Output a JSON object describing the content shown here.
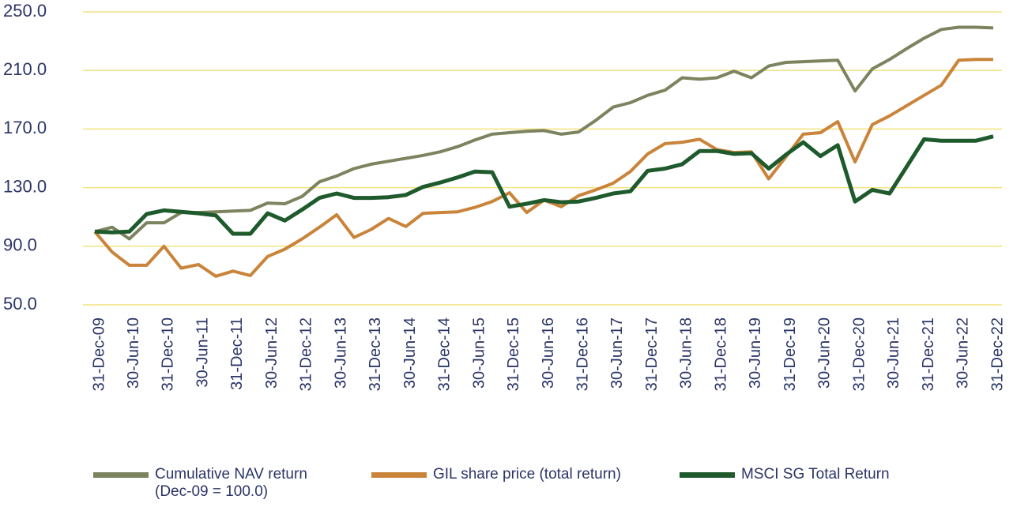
{
  "chart_data": {
    "type": "line",
    "categories": [
      "31-Dec-09",
      null,
      "30-Jun-10",
      null,
      "31-Dec-10",
      null,
      "30-Jun-11",
      null,
      "31-Dec-11",
      null,
      "30-Jun-12",
      null,
      "31-Dec-12",
      null,
      "30-Jun-13",
      null,
      "31-Dec-13",
      null,
      "30-Jun-14",
      null,
      "31-Dec-14",
      null,
      "30-Jun-15",
      null,
      "31-Dec-15",
      null,
      "30-Jun-16",
      null,
      "31-Dec-16",
      null,
      "30-Jun-17",
      null,
      "31-Dec-17",
      null,
      "30-Jun-18",
      null,
      "31-Dec-18",
      null,
      "30-Jun-19",
      null,
      "31-Dec-19",
      null,
      "30-Jun-20",
      null,
      "31-Dec-20",
      null,
      "30-Jun-21",
      null,
      "31-Dec-21",
      null,
      "30-Jun-22",
      null,
      "31-Dec-22"
    ],
    "series": [
      {
        "name": "Cumulative NAV return\n(Dec-09 = 100.0)",
        "color": "#7c845f",
        "width": 4,
        "values": [
          100,
          103,
          95,
          106,
          106,
          113,
          113,
          113.5,
          114,
          114.5,
          119.5,
          119,
          124,
          134,
          138,
          143,
          146,
          148,
          150,
          152,
          154.5,
          158,
          162.5,
          166.5,
          167.5,
          168.5,
          169,
          166.5,
          168,
          176,
          185,
          188,
          193,
          196.5,
          205,
          204,
          205,
          209.5,
          205,
          213,
          215.5,
          216,
          216.5,
          217,
          196,
          211,
          217.5,
          225,
          232,
          238,
          239.5,
          239.5,
          239
        ]
      },
      {
        "name": "GIL share price (total return)",
        "color": "#c9843a",
        "width": 4,
        "values": [
          100,
          86,
          77,
          77,
          90,
          75,
          77.5,
          69.5,
          73,
          70,
          83,
          88,
          95,
          103,
          111.5,
          96,
          101.5,
          109,
          103.5,
          112.5,
          113,
          113.5,
          116.5,
          120.5,
          126.5,
          113,
          121.5,
          117,
          124.5,
          128.5,
          133,
          141,
          153,
          160,
          161,
          163,
          156,
          154,
          154.5,
          136,
          151,
          166.5,
          167.5,
          175,
          147.5,
          173,
          179,
          186,
          193,
          200,
          217,
          217.5,
          217.5
        ]
      },
      {
        "name": "MSCI SG Total Return",
        "color": "#1e5a2c",
        "width": 5,
        "values": [
          100,
          99.5,
          100,
          112,
          114.5,
          113.5,
          112.5,
          111,
          98.5,
          98.5,
          112.5,
          107.5,
          115,
          123,
          126,
          123,
          123,
          123.5,
          125,
          130.5,
          133.5,
          137,
          141,
          140.5,
          117,
          119,
          121.5,
          120,
          120.5,
          123,
          126,
          127.5,
          141.5,
          143,
          146,
          155,
          155,
          153,
          153.5,
          143,
          152.5,
          161,
          151.5,
          159,
          120.5,
          128.5,
          126,
          144.5,
          163,
          162,
          162,
          162,
          165
        ]
      }
    ],
    "ylim": [
      50,
      250
    ],
    "yticks": [
      {
        "value": 50,
        "label": "50.0"
      },
      {
        "value": 90,
        "label": "90.0"
      },
      {
        "value": 130,
        "label": "130.0"
      },
      {
        "value": 170,
        "label": "170.0"
      },
      {
        "value": 210,
        "label": "210.0"
      },
      {
        "value": 250,
        "label": "250.0"
      }
    ],
    "grid": true,
    "grid_color": "#f2e27e"
  }
}
